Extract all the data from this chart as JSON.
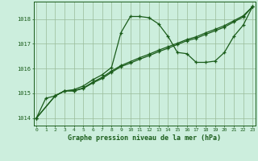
{
  "title": "Graphe pression niveau de la mer (hPa)",
  "bg_color": "#cceedd",
  "line_color": "#1a5c1a",
  "grid_color": "#99bb99",
  "x_ticks": [
    0,
    1,
    2,
    3,
    4,
    5,
    6,
    7,
    8,
    9,
    10,
    11,
    12,
    13,
    14,
    15,
    16,
    17,
    18,
    19,
    20,
    21,
    22,
    23
  ],
  "y_ticks": [
    1014,
    1015,
    1016,
    1017,
    1018
  ],
  "ylim": [
    1013.7,
    1018.7
  ],
  "xlim": [
    -0.3,
    23.3
  ],
  "series1_x": [
    0,
    1,
    2,
    3,
    4,
    5,
    6,
    7,
    8,
    9,
    10,
    11,
    12,
    13,
    14,
    15,
    16,
    17,
    18,
    19,
    20,
    21,
    22,
    23
  ],
  "series1_y": [
    1014.0,
    1014.8,
    1014.9,
    1015.1,
    1015.15,
    1015.3,
    1015.55,
    1015.75,
    1016.05,
    1017.45,
    1018.1,
    1018.1,
    1018.05,
    1017.8,
    1017.3,
    1016.65,
    1016.6,
    1016.25,
    1016.25,
    1016.3,
    1016.65,
    1017.3,
    1017.75,
    1018.5
  ],
  "series2_x": [
    0,
    2,
    3,
    4,
    5,
    6,
    7,
    8,
    9,
    10,
    11,
    12,
    13,
    14,
    15,
    16,
    17,
    18,
    19,
    20,
    21,
    22,
    23
  ],
  "series2_y": [
    1014.0,
    1014.9,
    1015.1,
    1015.1,
    1015.2,
    1015.42,
    1015.6,
    1015.85,
    1016.08,
    1016.22,
    1016.38,
    1016.52,
    1016.68,
    1016.82,
    1016.97,
    1017.12,
    1017.22,
    1017.38,
    1017.52,
    1017.67,
    1017.88,
    1018.08,
    1018.5
  ],
  "series3_x": [
    0,
    2,
    3,
    4,
    5,
    6,
    7,
    8,
    9,
    10,
    11,
    12,
    13,
    14,
    15,
    16,
    17,
    18,
    19,
    20,
    21,
    22,
    23
  ],
  "series3_y": [
    1014.0,
    1014.9,
    1015.1,
    1015.1,
    1015.22,
    1015.45,
    1015.65,
    1015.9,
    1016.12,
    1016.28,
    1016.44,
    1016.58,
    1016.74,
    1016.88,
    1017.02,
    1017.17,
    1017.28,
    1017.44,
    1017.58,
    1017.73,
    1017.93,
    1018.13,
    1018.5
  ]
}
